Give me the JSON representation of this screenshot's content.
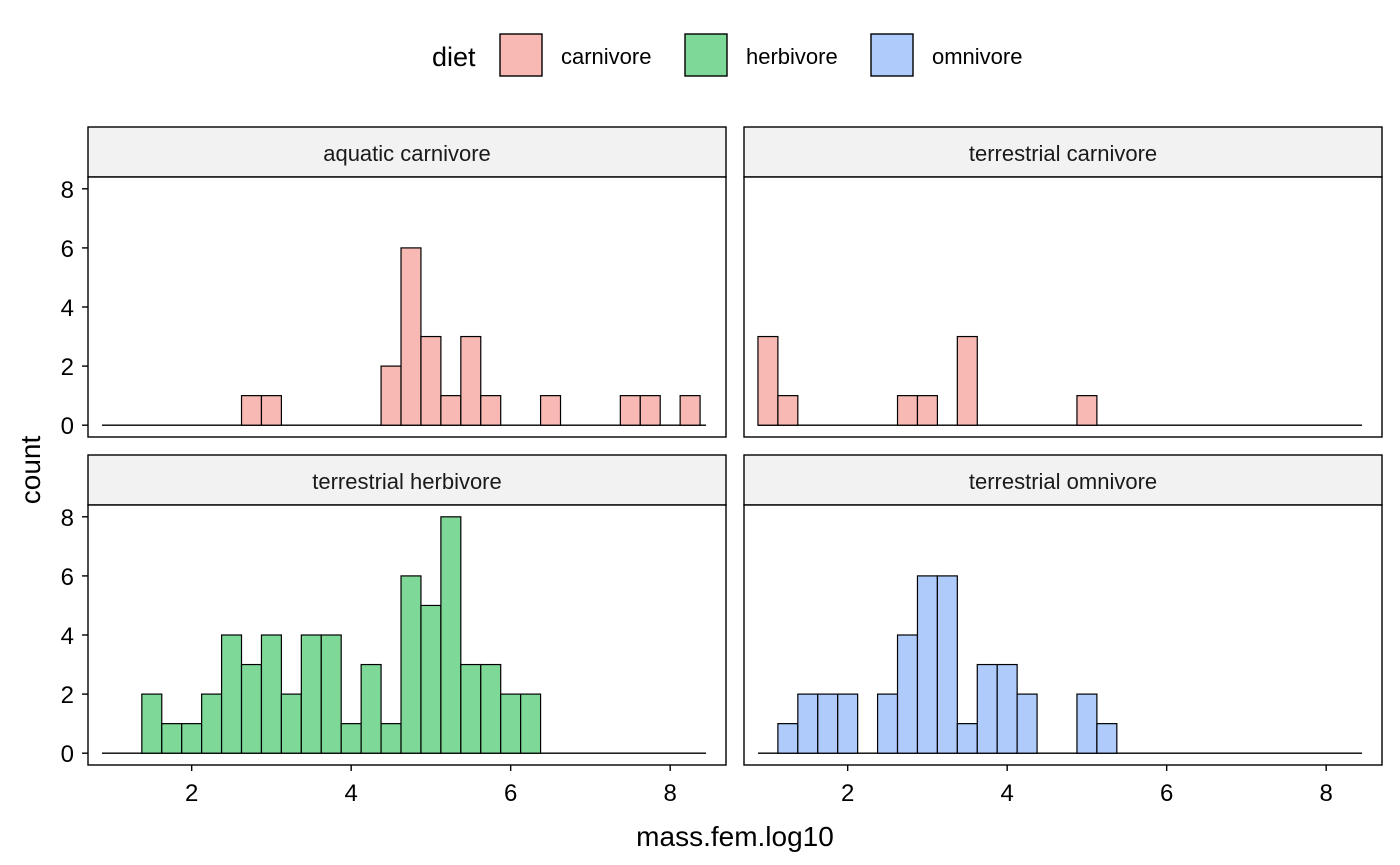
{
  "chart_data": {
    "type": "bar",
    "subtype": "faceted-histogram",
    "xlabel": "mass.fem.log10",
    "ylabel": "count",
    "legend": {
      "title": "diet",
      "position": "top",
      "entries": [
        {
          "name": "carnivore",
          "color": "#F8B9B4"
        },
        {
          "name": "herbivore",
          "color": "#7ED898"
        },
        {
          "name": "omnivore",
          "color": "#AFCBFC"
        }
      ]
    },
    "xlim": [
      0.7,
      8.7
    ],
    "ylim": [
      -0.4,
      8.4
    ],
    "x_ticks": [
      "2",
      "4",
      "6",
      "8"
    ],
    "y_ticks": [
      "0",
      "2",
      "4",
      "6",
      "8"
    ],
    "grid": false,
    "bin_width": 0.25,
    "x_range": [
      0.875,
      8.45
    ],
    "panels": [
      {
        "title": "aquatic carnivore",
        "diet": "carnivore",
        "bins": [
          {
            "x": 2.75,
            "count": 1
          },
          {
            "x": 3.0,
            "count": 1
          },
          {
            "x": 4.5,
            "count": 2
          },
          {
            "x": 4.75,
            "count": 6
          },
          {
            "x": 5.0,
            "count": 3
          },
          {
            "x": 5.25,
            "count": 1
          },
          {
            "x": 5.5,
            "count": 3
          },
          {
            "x": 5.75,
            "count": 1
          },
          {
            "x": 6.5,
            "count": 1
          },
          {
            "x": 7.5,
            "count": 1
          },
          {
            "x": 7.75,
            "count": 1
          },
          {
            "x": 8.25,
            "count": 1
          }
        ]
      },
      {
        "title": "terrestrial carnivore",
        "diet": "carnivore",
        "bins": [
          {
            "x": 1.0,
            "count": 3
          },
          {
            "x": 1.25,
            "count": 1
          },
          {
            "x": 2.75,
            "count": 1
          },
          {
            "x": 3.0,
            "count": 1
          },
          {
            "x": 3.5,
            "count": 3
          },
          {
            "x": 5.0,
            "count": 1
          }
        ]
      },
      {
        "title": "terrestrial herbivore",
        "diet": "herbivore",
        "bins": [
          {
            "x": 1.5,
            "count": 2
          },
          {
            "x": 1.75,
            "count": 1
          },
          {
            "x": 2.0,
            "count": 1
          },
          {
            "x": 2.25,
            "count": 2
          },
          {
            "x": 2.5,
            "count": 4
          },
          {
            "x": 2.75,
            "count": 3
          },
          {
            "x": 3.0,
            "count": 4
          },
          {
            "x": 3.25,
            "count": 2
          },
          {
            "x": 3.5,
            "count": 4
          },
          {
            "x": 3.75,
            "count": 4
          },
          {
            "x": 4.0,
            "count": 1
          },
          {
            "x": 4.25,
            "count": 3
          },
          {
            "x": 4.5,
            "count": 1
          },
          {
            "x": 4.75,
            "count": 6
          },
          {
            "x": 5.0,
            "count": 5
          },
          {
            "x": 5.25,
            "count": 8
          },
          {
            "x": 5.5,
            "count": 3
          },
          {
            "x": 5.75,
            "count": 3
          },
          {
            "x": 6.0,
            "count": 2
          },
          {
            "x": 6.25,
            "count": 2
          }
        ]
      },
      {
        "title": "terrestrial omnivore",
        "diet": "omnivore",
        "bins": [
          {
            "x": 1.25,
            "count": 1
          },
          {
            "x": 1.5,
            "count": 2
          },
          {
            "x": 1.75,
            "count": 2
          },
          {
            "x": 2.0,
            "count": 2
          },
          {
            "x": 2.5,
            "count": 2
          },
          {
            "x": 2.75,
            "count": 4
          },
          {
            "x": 3.0,
            "count": 6
          },
          {
            "x": 3.25,
            "count": 6
          },
          {
            "x": 3.5,
            "count": 1
          },
          {
            "x": 3.75,
            "count": 3
          },
          {
            "x": 4.0,
            "count": 3
          },
          {
            "x": 4.25,
            "count": 2
          },
          {
            "x": 5.0,
            "count": 2
          },
          {
            "x": 5.25,
            "count": 1
          }
        ]
      }
    ]
  }
}
